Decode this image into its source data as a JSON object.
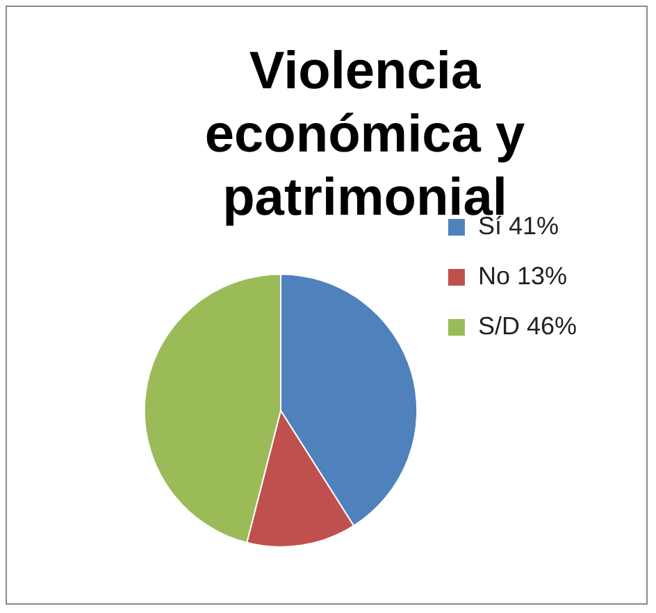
{
  "chart_data": {
    "type": "pie",
    "title": "Violencia económica y patrimonial",
    "categories": [
      "Sí 41%",
      "No 13%",
      "S/D 46%"
    ],
    "values": [
      41,
      13,
      46
    ],
    "colors": [
      "#4f81bd",
      "#c0504d",
      "#9bbb59"
    ],
    "legend": "right"
  }
}
